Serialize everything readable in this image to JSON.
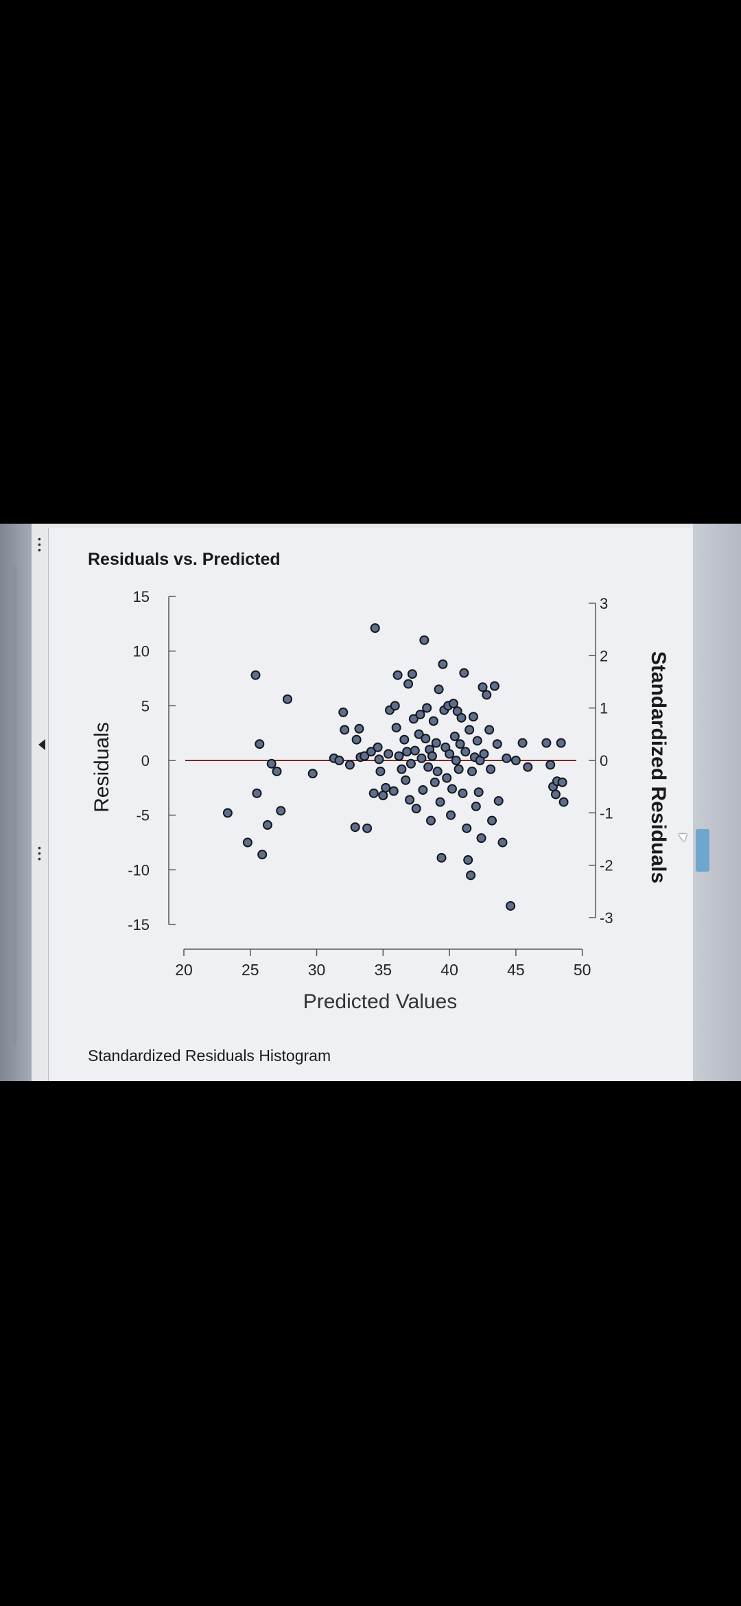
{
  "panel": {
    "title": "Residuals vs. Predicted",
    "next_section_title": "Standardized Residuals Histogram"
  },
  "colors": {
    "point_fill": "#5e6f8e",
    "point_stroke": "#14161c",
    "zero_line": "#7a2a24",
    "axis": "#555555",
    "background": "#eff0f3"
  },
  "icons": [
    "menu-dots-icon",
    "collapse-arrow-icon",
    "cursor-icon"
  ],
  "chart_data": {
    "type": "scatter",
    "title": "Residuals vs. Predicted",
    "xlabel": "Predicted Values",
    "ylabel": "Residuals",
    "y2label": "Standardized Residuals",
    "xlim": [
      20,
      51
    ],
    "ylim": [
      -16,
      16
    ],
    "y2lim": [
      -3.34,
      3.34
    ],
    "xticks": [
      "20",
      "25",
      "30",
      "35",
      "40",
      "45",
      "50"
    ],
    "yticks": [
      "15",
      "10",
      "5",
      "0",
      "-5",
      "-10",
      "-15"
    ],
    "y2ticks": [
      "3",
      "2",
      "1",
      "0",
      "-1",
      "-2",
      "-3"
    ],
    "reference_line_y": 0,
    "grid": false,
    "points": [
      {
        "x": 23.3,
        "y": -4.8
      },
      {
        "x": 24.8,
        "y": -7.5
      },
      {
        "x": 25.4,
        "y": 7.8
      },
      {
        "x": 25.7,
        "y": 1.5
      },
      {
        "x": 25.5,
        "y": -3.0
      },
      {
        "x": 25.9,
        "y": -8.6
      },
      {
        "x": 26.3,
        "y": -5.9
      },
      {
        "x": 26.6,
        "y": -0.3
      },
      {
        "x": 27.0,
        "y": -1.0
      },
      {
        "x": 27.3,
        "y": -4.6
      },
      {
        "x": 27.8,
        "y": 5.6
      },
      {
        "x": 29.7,
        "y": -1.2
      },
      {
        "x": 31.3,
        "y": 0.2
      },
      {
        "x": 31.7,
        "y": 0.0
      },
      {
        "x": 32.0,
        "y": 4.4
      },
      {
        "x": 32.1,
        "y": 2.8
      },
      {
        "x": 32.5,
        "y": -0.4
      },
      {
        "x": 32.9,
        "y": -6.1
      },
      {
        "x": 33.0,
        "y": 1.9
      },
      {
        "x": 33.2,
        "y": 2.9
      },
      {
        "x": 33.3,
        "y": 0.3
      },
      {
        "x": 33.6,
        "y": 0.4
      },
      {
        "x": 33.8,
        "y": -6.2
      },
      {
        "x": 34.1,
        "y": 0.8
      },
      {
        "x": 34.3,
        "y": -3.0
      },
      {
        "x": 34.4,
        "y": 12.1
      },
      {
        "x": 34.6,
        "y": 1.2
      },
      {
        "x": 34.7,
        "y": 0.1
      },
      {
        "x": 34.8,
        "y": -1.0
      },
      {
        "x": 35.0,
        "y": -3.2
      },
      {
        "x": 35.2,
        "y": -2.5
      },
      {
        "x": 35.4,
        "y": 0.6
      },
      {
        "x": 35.5,
        "y": 4.6
      },
      {
        "x": 35.8,
        "y": -2.8
      },
      {
        "x": 35.9,
        "y": 5.0
      },
      {
        "x": 36.0,
        "y": 3.0
      },
      {
        "x": 36.1,
        "y": 7.8
      },
      {
        "x": 36.2,
        "y": 0.4
      },
      {
        "x": 36.4,
        "y": -0.8
      },
      {
        "x": 36.6,
        "y": 1.9
      },
      {
        "x": 36.7,
        "y": -1.8
      },
      {
        "x": 36.8,
        "y": 0.8
      },
      {
        "x": 36.9,
        "y": 7.0
      },
      {
        "x": 37.0,
        "y": -3.6
      },
      {
        "x": 37.1,
        "y": -0.3
      },
      {
        "x": 37.2,
        "y": 7.9
      },
      {
        "x": 37.3,
        "y": 3.8
      },
      {
        "x": 37.4,
        "y": 0.9
      },
      {
        "x": 37.5,
        "y": -4.4
      },
      {
        "x": 37.7,
        "y": 2.4
      },
      {
        "x": 37.8,
        "y": 4.2
      },
      {
        "x": 37.9,
        "y": 0.2
      },
      {
        "x": 38.0,
        "y": -2.7
      },
      {
        "x": 38.1,
        "y": 11.0
      },
      {
        "x": 38.2,
        "y": 2.0
      },
      {
        "x": 38.3,
        "y": 4.8
      },
      {
        "x": 38.4,
        "y": -0.6
      },
      {
        "x": 38.5,
        "y": 1.0
      },
      {
        "x": 38.6,
        "y": -5.5
      },
      {
        "x": 38.7,
        "y": 0.4
      },
      {
        "x": 38.8,
        "y": 3.6
      },
      {
        "x": 38.9,
        "y": -2.0
      },
      {
        "x": 39.0,
        "y": 1.6
      },
      {
        "x": 39.1,
        "y": -1.0
      },
      {
        "x": 39.2,
        "y": 6.5
      },
      {
        "x": 39.3,
        "y": -3.8
      },
      {
        "x": 39.4,
        "y": -8.9
      },
      {
        "x": 39.5,
        "y": 8.8
      },
      {
        "x": 39.6,
        "y": 4.6
      },
      {
        "x": 39.7,
        "y": 1.2
      },
      {
        "x": 39.8,
        "y": -1.6
      },
      {
        "x": 39.9,
        "y": 5.0
      },
      {
        "x": 40.0,
        "y": 0.6
      },
      {
        "x": 40.1,
        "y": -5.0
      },
      {
        "x": 40.2,
        "y": -2.6
      },
      {
        "x": 40.3,
        "y": 5.2
      },
      {
        "x": 40.4,
        "y": 2.2
      },
      {
        "x": 40.5,
        "y": 0.0
      },
      {
        "x": 40.6,
        "y": 4.5
      },
      {
        "x": 40.7,
        "y": -0.8
      },
      {
        "x": 40.8,
        "y": 1.5
      },
      {
        "x": 40.9,
        "y": 3.9
      },
      {
        "x": 41.0,
        "y": -3.0
      },
      {
        "x": 41.1,
        "y": 8.0
      },
      {
        "x": 41.2,
        "y": 0.8
      },
      {
        "x": 41.3,
        "y": -6.2
      },
      {
        "x": 41.4,
        "y": -9.1
      },
      {
        "x": 41.5,
        "y": 2.8
      },
      {
        "x": 41.6,
        "y": -10.5
      },
      {
        "x": 41.7,
        "y": -1.0
      },
      {
        "x": 41.8,
        "y": 4.0
      },
      {
        "x": 41.9,
        "y": 0.3
      },
      {
        "x": 42.0,
        "y": -4.2
      },
      {
        "x": 42.1,
        "y": 1.8
      },
      {
        "x": 42.2,
        "y": -2.9
      },
      {
        "x": 42.3,
        "y": 0.0
      },
      {
        "x": 42.4,
        "y": -7.1
      },
      {
        "x": 42.5,
        "y": 6.7
      },
      {
        "x": 42.6,
        "y": 0.6
      },
      {
        "x": 42.8,
        "y": 6.0
      },
      {
        "x": 43.0,
        "y": 2.8
      },
      {
        "x": 43.1,
        "y": -0.8
      },
      {
        "x": 43.2,
        "y": -5.5
      },
      {
        "x": 43.4,
        "y": 6.8
      },
      {
        "x": 43.6,
        "y": 1.5
      },
      {
        "x": 43.7,
        "y": -3.7
      },
      {
        "x": 44.0,
        "y": -7.5
      },
      {
        "x": 44.3,
        "y": 0.2
      },
      {
        "x": 44.6,
        "y": -13.3
      },
      {
        "x": 45.0,
        "y": 0.0
      },
      {
        "x": 45.5,
        "y": 1.6
      },
      {
        "x": 45.9,
        "y": -0.6
      },
      {
        "x": 47.3,
        "y": 1.6
      },
      {
        "x": 47.6,
        "y": -0.4
      },
      {
        "x": 47.8,
        "y": -2.4
      },
      {
        "x": 48.0,
        "y": -3.1
      },
      {
        "x": 48.1,
        "y": -1.9
      },
      {
        "x": 48.4,
        "y": 1.6
      },
      {
        "x": 48.5,
        "y": -2.0
      },
      {
        "x": 48.6,
        "y": -3.8
      }
    ]
  }
}
